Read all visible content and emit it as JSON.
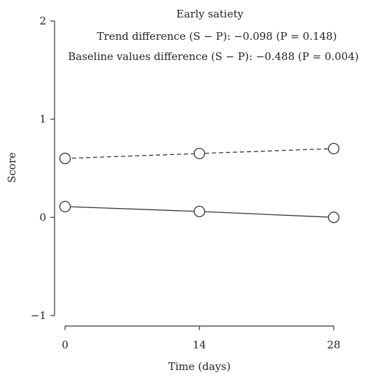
{
  "chart_data": {
    "type": "line",
    "title": "Early satiety",
    "annotations": [
      "Trend difference (S − P): −0.098 (P = 0.148)",
      "Baseline values difference (S − P): −0.488 (P = 0.004)"
    ],
    "xlabel": "Time (days)",
    "ylabel": "Score",
    "x": [
      0,
      14,
      28
    ],
    "x_ticks": [
      "0",
      "14",
      "28"
    ],
    "y_ticks": [
      "−1",
      "0",
      "1",
      "2"
    ],
    "xlim": [
      0,
      28
    ],
    "ylim": [
      -1,
      2
    ],
    "grid": false,
    "series": [
      {
        "style": "dashed",
        "marker": "open-circle",
        "values": [
          0.6,
          0.65,
          0.7
        ]
      },
      {
        "style": "solid",
        "marker": "open-circle",
        "values": [
          0.11,
          0.06,
          0.0
        ]
      }
    ]
  }
}
